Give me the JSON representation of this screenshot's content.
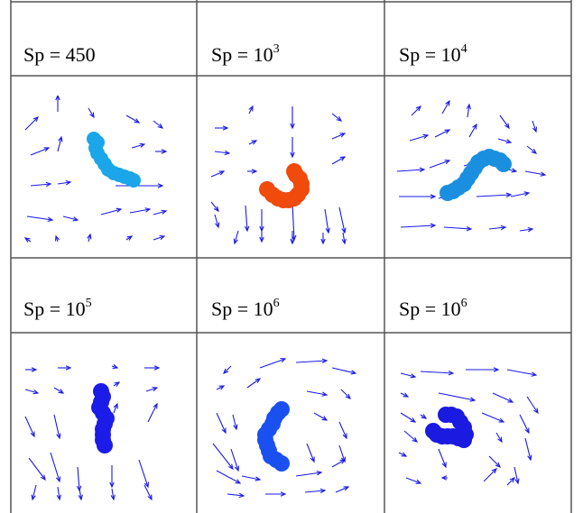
{
  "panels": [
    {
      "label": {
        "base": "Sp = ",
        "value": "450",
        "exp": ""
      },
      "blob_color": "#1aa6e8"
    },
    {
      "label": {
        "base": "Sp = ",
        "value": "10",
        "exp": "3"
      },
      "blob_color": "#f04a0c"
    },
    {
      "label": {
        "base": "Sp = ",
        "value": "10",
        "exp": "4"
      },
      "blob_color": "#1a8fe0"
    },
    {
      "label": {
        "base": "Sp = ",
        "value": "10",
        "exp": "5"
      },
      "blob_color": "#1c1ce8"
    },
    {
      "label": {
        "base": "Sp = ",
        "value": "10",
        "exp": "6"
      },
      "blob_color": "#1a50f0"
    },
    {
      "label": {
        "base": "Sp = ",
        "value": "10",
        "exp": "6"
      },
      "blob_color": "#1a1ae0"
    }
  ],
  "arrow_color": "#1a1ae8"
}
